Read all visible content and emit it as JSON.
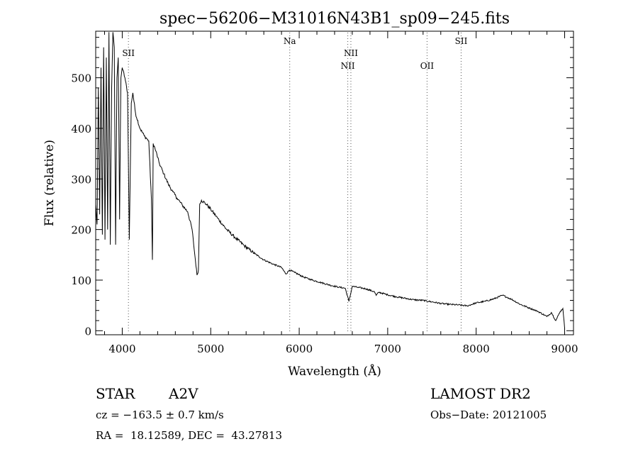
{
  "chart_data": {
    "type": "line",
    "title": "spec−56206−M31016N43B1_sp09−245.fits",
    "xlabel": "Wavelength (Å)",
    "ylabel": "Flux (relative)",
    "xlim": [
      3700,
      9100
    ],
    "ylim": [
      -8,
      592
    ],
    "x_ticks": [
      4000,
      5000,
      6000,
      7000,
      8000,
      9000
    ],
    "y_ticks": [
      0,
      100,
      200,
      300,
      400,
      500
    ],
    "x_tick_labels": [
      "4000",
      "5000",
      "6000",
      "7000",
      "8000",
      "9000"
    ],
    "y_tick_labels": [
      "0",
      "100",
      "200",
      "300",
      "400",
      "500"
    ],
    "grid": false,
    "series": [
      {
        "name": "",
        "x": [
          3700,
          3715,
          3730,
          3745,
          3760,
          3775,
          3790,
          3805,
          3820,
          3835,
          3850,
          3865,
          3880,
          3895,
          3910,
          3925,
          3940,
          3955,
          3970,
          3985,
          4000,
          4030,
          4060,
          4080,
          4102,
          4120,
          4150,
          4200,
          4250,
          4300,
          4330,
          4341,
          4350,
          4380,
          4420,
          4470,
          4520,
          4570,
          4620,
          4680,
          4740,
          4790,
          4820,
          4845,
          4861,
          4875,
          4895,
          4950,
          5000,
          5080,
          5170,
          5270,
          5380,
          5500,
          5600,
          5700,
          5800,
          5850,
          5890,
          5950,
          6050,
          6150,
          6250,
          6350,
          6450,
          6520,
          6562,
          6600,
          6650,
          6750,
          6850,
          6870,
          6900,
          7000,
          7100,
          7200,
          7300,
          7400,
          7500,
          7600,
          7700,
          7800,
          7900,
          8000,
          8100,
          8200,
          8300,
          8350,
          8400,
          8500,
          8600,
          8700,
          8800,
          8850,
          8900,
          8950,
          8980,
          9000
        ],
        "y": [
          250,
          210,
          480,
          230,
          520,
          190,
          560,
          180,
          540,
          200,
          590,
          170,
          480,
          590,
          560,
          170,
          500,
          540,
          220,
          500,
          520,
          500,
          470,
          180,
          450,
          470,
          430,
          400,
          385,
          375,
          260,
          140,
          370,
          355,
          330,
          310,
          290,
          275,
          262,
          248,
          235,
          200,
          150,
          110,
          120,
          250,
          258,
          250,
          240,
          222,
          202,
          185,
          168,
          152,
          140,
          132,
          125,
          112,
          120,
          115,
          106,
          100,
          95,
          90,
          86,
          84,
          58,
          88,
          86,
          83,
          77,
          70,
          76,
          71,
          67,
          64,
          61,
          60,
          57,
          54,
          52,
          51,
          49,
          55,
          58,
          63,
          70,
          66,
          62,
          52,
          45,
          38,
          28,
          36,
          20,
          38,
          44,
          5
        ]
      }
    ],
    "line_markers": [
      {
        "label": "SII",
        "x": 4070,
        "label_row": 1
      },
      {
        "label": "Na",
        "x": 5893,
        "label_row": 0
      },
      {
        "label": "NII",
        "x": 6549,
        "label_row": 2
      },
      {
        "label": "NII",
        "x": 6584,
        "label_row": 1
      },
      {
        "label": "OII",
        "x": 7445,
        "label_row": 2
      },
      {
        "label": "SII",
        "x": 7830,
        "label_row": 0
      }
    ]
  },
  "info": {
    "object_class": "STAR",
    "subclass": "A2V",
    "survey": "LAMOST DR2",
    "redshift_line": "cz = −163.5 ± 0.7 km/s",
    "obs_date": "Obs−Date: 20121005",
    "coords": "RA =  18.12589, DEC =  43.27813"
  }
}
